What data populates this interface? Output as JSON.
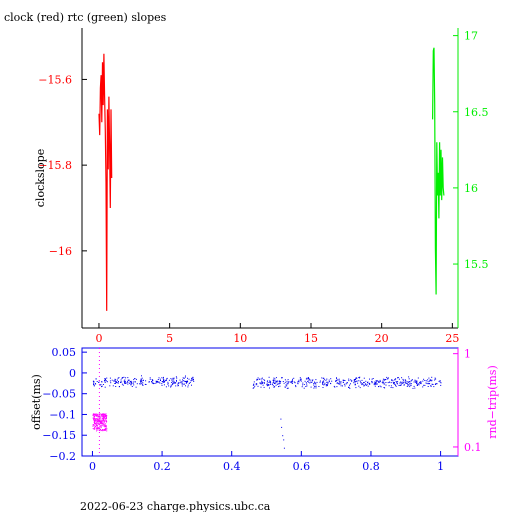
{
  "title": "clock (red) rtc (green) slopes",
  "footer": "2022-06-23 charge.physics.ubc.ca",
  "colors": {
    "red": "#ff0000",
    "green": "#00ee00",
    "blue": "#0000ee",
    "magenta": "#ff00ff",
    "axis_top": "#000000",
    "axis_bottom": "#0000ee"
  },
  "chart_data": [
    {
      "type": "line",
      "title": "clock (red) rtc (green) slopes",
      "ylabel": "clockslope",
      "xlim": [
        -1.2,
        25.4
      ],
      "xticks": [
        0,
        5,
        10,
        15,
        20,
        25
      ],
      "ylim": [
        -16.18,
        -15.48
      ],
      "yticks": [
        -15.6,
        -15.8,
        -16
      ],
      "ytick_labels": [
        "−15.6",
        "−15.8",
        "−16"
      ],
      "y2lim": [
        15.08,
        17.05
      ],
      "y2ticks": [
        15.5,
        16,
        16.5,
        17
      ],
      "y2tick_labels": [
        "15.5",
        "16",
        "16.5",
        "17"
      ],
      "series": [
        {
          "axis": "left",
          "color": "#ff0000",
          "x": [
            0.0,
            0.05,
            0.1,
            0.15,
            0.2,
            0.25,
            0.3,
            0.35,
            0.4,
            0.45,
            0.5,
            0.55,
            0.6,
            0.65,
            0.7,
            0.75,
            0.8,
            0.85,
            0.9
          ],
          "y": [
            -15.68,
            -15.73,
            -15.62,
            -15.59,
            -15.7,
            -15.56,
            -15.66,
            -15.54,
            -15.64,
            -15.72,
            -15.84,
            -16.14,
            -15.67,
            -15.81,
            -15.64,
            -15.76,
            -15.9,
            -15.67,
            -15.83
          ]
        },
        {
          "axis": "right",
          "color": "#00ee00",
          "x": [
            23.6,
            23.65,
            23.7,
            23.75,
            23.8,
            23.85,
            23.9,
            23.95,
            24.0,
            24.05,
            24.1,
            24.15,
            24.2,
            24.25,
            24.3,
            24.35,
            24.4
          ],
          "y": [
            16.45,
            16.9,
            16.92,
            16.55,
            15.6,
            15.3,
            16.3,
            15.95,
            16.1,
            15.8,
            16.3,
            15.95,
            16.25,
            15.92,
            16.2,
            16.0,
            15.95
          ]
        }
      ]
    },
    {
      "type": "scatter",
      "ylabel": "offset(ms)",
      "y2label": "rnd−trip(ms)",
      "xlim": [
        -0.03,
        1.05
      ],
      "xticks": [
        0,
        0.2,
        0.4,
        0.6,
        0.8,
        1
      ],
      "xtick_labels": [
        "0",
        "0.2",
        "0.4",
        "0.6",
        "0.8",
        "1"
      ],
      "ylim": [
        -0.2,
        0.06
      ],
      "yticks": [
        0.05,
        0,
        -0.05,
        -0.1,
        -0.15,
        -0.2
      ],
      "ytick_labels": [
        "0.05",
        "0",
        "−0.05",
        "−0.1",
        "−0.15",
        "−0.2"
      ],
      "y2lim": [
        0.08,
        1.15
      ],
      "y2scale": "log",
      "y2ticks": [
        1,
        0.1
      ],
      "y2tick_labels": [
        "1",
        "0.1"
      ],
      "series": [
        {
          "axis": "left",
          "color": "#0000ee",
          "segments": [
            {
              "x_start": 0.0,
              "x_end": 0.29,
              "y_mean": -0.02,
              "y_spread": 0.015
            },
            {
              "x_start": 0.46,
              "x_end": 1.0,
              "y_mean": -0.022,
              "y_spread": 0.015
            }
          ],
          "outliers_x": [
            0.54,
            0.545,
            0.55,
            0.542,
            0.548
          ],
          "outliers_y": [
            -0.11,
            -0.15,
            -0.18,
            -0.13,
            -0.16
          ]
        },
        {
          "axis": "right",
          "color": "#ff00ff",
          "x_start": 0.0,
          "x_end": 0.04,
          "y_min": 0.15,
          "y_max": 0.23
        }
      ]
    }
  ]
}
